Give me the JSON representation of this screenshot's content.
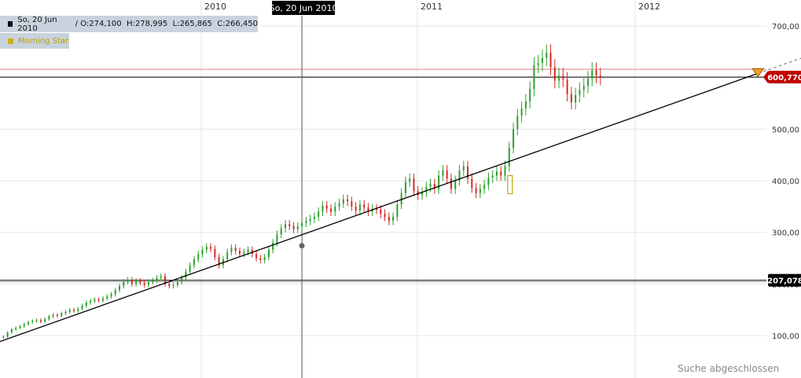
{
  "ohlc_bar": {
    "date": "So, 20 Jun 2010",
    "open": "O:274,100",
    "high": "H:278,995",
    "low": "L:265,865",
    "close": "C:266,450"
  },
  "pattern_label": "Morning Star",
  "crosshair_label": "So, 20 Jun 2010",
  "status_text": "Suche abgeschlossen",
  "chart_data": {
    "type": "candlestick",
    "x_labels": [
      "2010",
      "2011",
      "2012"
    ],
    "y_ticks": [
      "700,00",
      "600,00",
      "500,00",
      "400,00",
      "300,00",
      "200,00",
      "100,00"
    ],
    "y_values": [
      700,
      600,
      500,
      400,
      300,
      200,
      100
    ],
    "ylim": [
      20,
      735
    ],
    "price_tags": [
      {
        "label": "600,770",
        "value": 600.77,
        "color": "#c00000"
      },
      {
        "label": "207,078",
        "value": 207.078,
        "color": "#000000"
      }
    ],
    "horizontal_lines": [
      {
        "value": 616,
        "color": "#e08080"
      },
      {
        "value": 600.77,
        "color": "#000000"
      },
      {
        "value": 207.078,
        "color": "#000000"
      }
    ],
    "crosshair": {
      "date": "2010-06-20",
      "value": 274.1
    },
    "closes": [
      102,
      100,
      97,
      96,
      98,
      106,
      112,
      115,
      118,
      122,
      126,
      128,
      130,
      127,
      132,
      137,
      140,
      138,
      143,
      146,
      150,
      148,
      152,
      158,
      164,
      167,
      170,
      168,
      172,
      176,
      180,
      188,
      196,
      204,
      208,
      200,
      206,
      202,
      198,
      204,
      207,
      212,
      215,
      200,
      196,
      198,
      204,
      212,
      224,
      236,
      248,
      258,
      266,
      272,
      268,
      252,
      236,
      248,
      262,
      270,
      264,
      258,
      262,
      266,
      258,
      250,
      246,
      252,
      266,
      280,
      296,
      308,
      316,
      312,
      306,
      312,
      318,
      322,
      326,
      330,
      340,
      352,
      346,
      340,
      350,
      356,
      364,
      360,
      350,
      342,
      354,
      348,
      340,
      346,
      344,
      336,
      330,
      322,
      330,
      354,
      376,
      398,
      404,
      380,
      372,
      378,
      388,
      394,
      384,
      410,
      420,
      404,
      384,
      400,
      420,
      428,
      404,
      386,
      376,
      384,
      392,
      406,
      410,
      418,
      410,
      428,
      464,
      500,
      526,
      540,
      554,
      578,
      624,
      628,
      638,
      648,
      620,
      594,
      604,
      596,
      568,
      552,
      566,
      576,
      584,
      598,
      614,
      604,
      600
    ],
    "bar_date_start": "2009-01-04",
    "trendlines": [
      {
        "from_date": "2009-01-25",
        "from_value": 88,
        "to_date": "2012-07-29",
        "to_value": 608,
        "extension_to": 650
      }
    ]
  }
}
